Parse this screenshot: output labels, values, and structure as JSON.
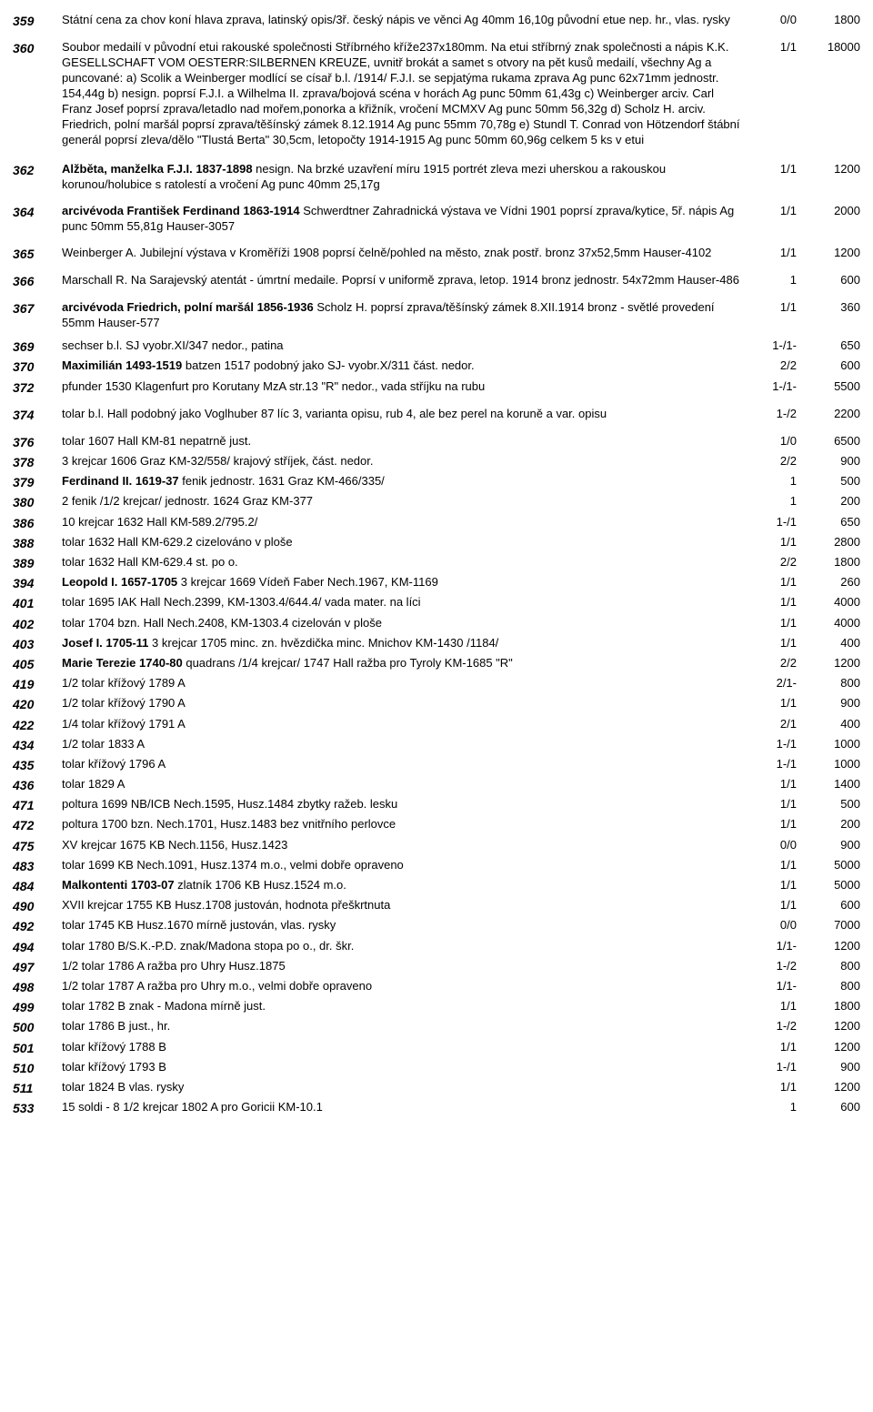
{
  "rows": [
    {
      "lot": "359",
      "grade": "0/0",
      "price": "1800",
      "tall": true,
      "desc": "Státní cena za chov koní hlava zprava, latinský opis/3ř. český nápis ve věnci Ag 40mm 16,10g původní etue nep. hr., vlas. rysky"
    },
    {
      "lot": "360",
      "grade": "1/1",
      "price": "18000",
      "tall": true,
      "group": true,
      "desc": "Soubor medailí v původní etui rakouské společnosti Stříbrného kříže237x180mm. Na etui stříbrný znak společnosti a nápis K.K. GESELLSCHAFT VOM OESTERR:SILBERNEN KREUZE, uvnitř brokát a samet s otvory na pět kusů medailí, všechny Ag a puncované: a) Scolik a Weinberger modlící se císař b.l. /1914/ F.J.I. se sepjatýma rukama zprava Ag punc 62x71mm jednostr. 154,44g b) nesign. poprsí F.J.I. a Wilhelma II. zprava/bojová scéna v horách Ag punc 50mm 61,43g c) Weinberger arciv. Carl Franz Josef poprsí zprava/letadlo nad mořem,ponorka a křižník, vročení MCMXV Ag punc 50mm 56,32g d) Scholz H. arciv. Friedrich, polní maršál poprsí zprava/těšínský zámek 8.12.1914 Ag punc 55mm 70,78g e) Stundl T. Conrad von Hötzendorf štábní generál poprsí zleva/dělo \"Tlustá Berta\" 30,5cm, letopočty 1914-1915 Ag punc 50mm 60,96g celkem 5 ks v etui"
    },
    {
      "lot": "362",
      "grade": "1/1",
      "price": "1200",
      "tall": true,
      "bold": "Alžběta, manželka F.J.I. 1837-1898",
      "desc": " nesign. Na brzké uzavření míru 1915 portrét zleva mezi uherskou a rakouskou korunou/holubice s ratolestí a vročení Ag punc 40mm 25,17g"
    },
    {
      "lot": "364",
      "grade": "1/1",
      "price": "2000",
      "tall": true,
      "bold": "arcivévoda František Ferdinand 1863-1914",
      "desc": " Schwerdtner Zahradnická výstava ve Vídni 1901 poprsí zprava/kytice, 5ř. nápis       Ag punc 50mm 55,81g Hauser-3057"
    },
    {
      "lot": "365",
      "grade": "1/1",
      "price": "1200",
      "tall": true,
      "desc": "Weinberger A. Jubilejní výstava v Kroměříži 1908 poprsí čelně/pohled na město, znak postř. bronz 37x52,5mm Hauser-4102"
    },
    {
      "lot": "366",
      "grade": "1",
      "price": "600",
      "tall": true,
      "desc": "Marschall R. Na Sarajevský atentát - úmrtní medaile. Poprsí v uniformě zprava, letop. 1914 bronz jednostr. 54x72mm Hauser-486"
    },
    {
      "lot": "367",
      "grade": "1/1",
      "price": "360",
      "tall": true,
      "bold": "arcivévoda Friedrich, polní maršál 1856-1936",
      "desc": " Scholz H. poprsí zprava/těšínský zámek 8.XII.1914 bronz - světlé provedení 55mm Hauser-577"
    },
    {
      "lot": "369",
      "grade": "1-/1-",
      "price": "650",
      "desc": "sechser b.l. SJ vyobr.XI/347 nedor., patina"
    },
    {
      "lot": "370",
      "grade": "2/2",
      "price": "600",
      "bold": "Maximilián 1493-1519",
      "desc": " batzen 1517 podobný jako SJ- vyobr.X/311 část. nedor."
    },
    {
      "lot": "372",
      "grade": "1-/1-",
      "price": "5500",
      "group": true,
      "desc": "pfunder 1530 Klagenfurt pro Korutany MzA str.13 \"R\" nedor., vada stříjku na rubu"
    },
    {
      "lot": "374",
      "grade": "1-/2",
      "price": "2200",
      "group": true,
      "desc": "tolar b.l. Hall podobný jako Voglhuber 87 líc 3, varianta opisu, rub 4, ale bez perel na koruně a var. opisu"
    },
    {
      "lot": "376",
      "grade": "1/0",
      "price": "6500",
      "desc": "tolar 1607 Hall KM-81 nepatrně just."
    },
    {
      "lot": "378",
      "grade": "2/2",
      "price": "900",
      "desc": "3 krejcar 1606 Graz KM-32/558/ krajový stříjek, část. nedor."
    },
    {
      "lot": "379",
      "grade": "1",
      "price": "500",
      "bold": "Ferdinand II. 1619-37",
      "desc": " fenik jednostr. 1631 Graz KM-466/335/"
    },
    {
      "lot": "380",
      "grade": "1",
      "price": "200",
      "desc": "2 fenik /1/2 krejcar/ jednostr. 1624 Graz KM-377"
    },
    {
      "lot": "386",
      "grade": "1-/1",
      "price": "650",
      "desc": "10 krejcar 1632 Hall KM-589.2/795.2/"
    },
    {
      "lot": "388",
      "grade": "1/1",
      "price": "2800",
      "desc": "tolar 1632 Hall KM-629.2 cizelováno v ploše"
    },
    {
      "lot": "389",
      "grade": "2/2",
      "price": "1800",
      "desc": "tolar 1632 Hall KM-629.4 st. po o."
    },
    {
      "lot": "394",
      "grade": "1/1",
      "price": "260",
      "bold": "Leopold I. 1657-1705",
      "desc": " 3 krejcar 1669 Vídeň Faber Nech.1967,            KM-1169"
    },
    {
      "lot": "401",
      "grade": "1/1",
      "price": "4000",
      "desc": "tolar 1695 IAK Hall Nech.2399, KM-1303.4/644.4/ vada mater. na líci"
    },
    {
      "lot": "402",
      "grade": "1/1",
      "price": "4000",
      "desc": "tolar 1704 bzn. Hall Nech.2408, KM-1303.4 cizelován v ploše"
    },
    {
      "lot": "403",
      "grade": "1/1",
      "price": "400",
      "bold": "Josef I. 1705-11",
      "desc": " 3 krejcar 1705 minc. zn. hvězdička minc. Mnichov     KM-1430 /1184/"
    },
    {
      "lot": "405",
      "grade": "2/2",
      "price": "1200",
      "bold": "Marie Terezie 1740-80",
      "desc": " quadrans /1/4 krejcar/ 1747 Hall ražba pro Tyroly KM-1685 \"R\""
    },
    {
      "lot": "419",
      "grade": "2/1-",
      "price": "800",
      "desc": "1/2 tolar křížový 1789 A"
    },
    {
      "lot": "420",
      "grade": "1/1",
      "price": "900",
      "desc": "1/2 tolar křížový 1790 A"
    },
    {
      "lot": "422",
      "grade": "2/1",
      "price": "400",
      "desc": "1/4 tolar křížový 1791 A"
    },
    {
      "lot": "434",
      "grade": "1-/1",
      "price": "1000",
      "desc": "1/2 tolar 1833 A"
    },
    {
      "lot": "435",
      "grade": "1-/1",
      "price": "1000",
      "desc": "tolar křížový 1796 A"
    },
    {
      "lot": "436",
      "grade": "1/1",
      "price": "1400",
      "desc": "tolar 1829 A"
    },
    {
      "lot": "471",
      "grade": "1/1",
      "price": "500",
      "desc": "poltura 1699 NB/ICB Nech.1595, Husz.1484 zbytky ražeb. lesku"
    },
    {
      "lot": "472",
      "grade": "1/1",
      "price": "200",
      "desc": "poltura 1700 bzn. Nech.1701, Husz.1483 bez vnitřního perlovce"
    },
    {
      "lot": "475",
      "grade": "0/0",
      "price": "900",
      "desc": "XV krejcar 1675 KB Nech.1156, Husz.1423"
    },
    {
      "lot": "483",
      "grade": "1/1",
      "price": "5000",
      "desc": "tolar 1699 KB Nech.1091, Husz.1374 m.o., velmi dobře opraveno"
    },
    {
      "lot": "484",
      "grade": "1/1",
      "price": "5000",
      "bold": "Malkontenti 1703-07",
      "desc": " zlatník 1706 KB Husz.1524 m.o."
    },
    {
      "lot": "490",
      "grade": "1/1",
      "price": "600",
      "desc": "XVII krejcar 1755 KB Husz.1708 justován, hodnota přeškrtnuta"
    },
    {
      "lot": "492",
      "grade": "0/0",
      "price": "7000",
      "desc": "tolar 1745 KB Husz.1670 mírně justován, vlas. rysky"
    },
    {
      "lot": "494",
      "grade": "1/1-",
      "price": "1200",
      "desc": "tolar 1780 B/S.K.-P.D. znak/Madona stopa po o., dr. škr."
    },
    {
      "lot": "497",
      "grade": "1-/2",
      "price": "800",
      "desc": "1/2 tolar 1786 A ražba pro Uhry Husz.1875"
    },
    {
      "lot": "498",
      "grade": "1/1-",
      "price": "800",
      "desc": "1/2 tolar 1787 A ražba pro Uhry m.o., velmi dobře opraveno"
    },
    {
      "lot": "499",
      "grade": "1/1",
      "price": "1800",
      "desc": "tolar 1782 B znak - Madona mírně just."
    },
    {
      "lot": "500",
      "grade": "1-/2",
      "price": "1200",
      "desc": "tolar 1786 B just., hr."
    },
    {
      "lot": "501",
      "grade": "1/1",
      "price": "1200",
      "desc": "tolar křížový 1788 B"
    },
    {
      "lot": "510",
      "grade": "1-/1",
      "price": "900",
      "desc": "tolar křížový 1793 B"
    },
    {
      "lot": "511",
      "grade": "1/1",
      "price": "1200",
      "desc": "tolar 1824 B vlas. rysky"
    },
    {
      "lot": "533",
      "grade": "1",
      "price": "600",
      "desc": "15 soldi - 8 1/2 krejcar 1802 A pro Goricii KM-10.1"
    }
  ]
}
